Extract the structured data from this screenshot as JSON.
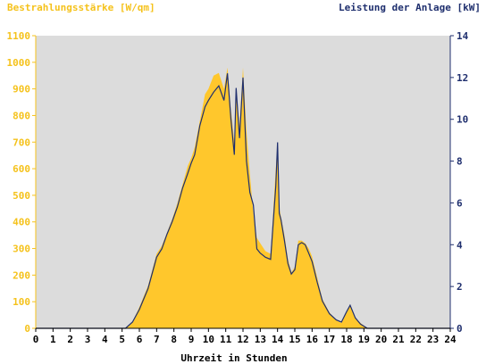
{
  "chart_data": {
    "type": "area",
    "left_axis_title": "Bestrahlungsstärke [W/qm]",
    "right_axis_title": "Leistung der Anlage [kW]",
    "xlabel": "Uhrzeit in Stunden",
    "xlim": [
      0,
      24
    ],
    "ylim_left": [
      0,
      1100
    ],
    "ylim_right": [
      0,
      14
    ],
    "x_ticks": [
      "0",
      "1",
      "2",
      "3",
      "4",
      "5",
      "6",
      "7",
      "8",
      "9",
      "10",
      "11",
      "12",
      "13",
      "14",
      "15",
      "16",
      "17",
      "18",
      "19",
      "20",
      "21",
      "22",
      "23",
      "24"
    ],
    "y_left_ticks": [
      "0",
      "100",
      "200",
      "300",
      "400",
      "500",
      "600",
      "700",
      "800",
      "900",
      "1000",
      "1100"
    ],
    "y_right_ticks": [
      "0",
      "2",
      "4",
      "6",
      "8",
      "10",
      "12",
      "14"
    ],
    "grid": false,
    "colors": {
      "irradiance_fill": "#ffc72c",
      "power_line": "#1f2f6e",
      "plot_bg": "#dcdcdc",
      "left_axis": "#f5c21b",
      "right_axis": "#1f2f6e"
    },
    "series": [
      {
        "axis": "left",
        "style": "area",
        "x": [
          0,
          5.2,
          5.6,
          6.0,
          6.5,
          7.0,
          7.3,
          7.6,
          7.9,
          8.2,
          8.5,
          8.8,
          9.0,
          9.2,
          9.5,
          9.8,
          10.0,
          10.3,
          10.6,
          10.9,
          11.1,
          11.3,
          11.5,
          11.6,
          11.8,
          12.0,
          12.2,
          12.4,
          12.6,
          12.8,
          13.0,
          13.3,
          13.6,
          13.9,
          14.0,
          14.1,
          14.2,
          14.4,
          14.6,
          14.8,
          15.0,
          15.2,
          15.4,
          15.6,
          15.8,
          16.0,
          16.3,
          16.6,
          17.0,
          17.4,
          17.7,
          18.0,
          18.2,
          18.5,
          18.8,
          19.2,
          24
        ],
        "values": [
          0,
          0,
          25,
          80,
          160,
          280,
          310,
          360,
          410,
          470,
          540,
          610,
          640,
          680,
          780,
          880,
          900,
          950,
          960,
          900,
          980,
          820,
          700,
          900,
          760,
          980,
          740,
          580,
          430,
          340,
          320,
          290,
          280,
          600,
          700,
          450,
          420,
          350,
          260,
          210,
          230,
          330,
          330,
          320,
          300,
          270,
          190,
          110,
          60,
          30,
          20,
          60,
          90,
          40,
          20,
          0,
          0
        ]
      },
      {
        "axis": "right",
        "style": "line",
        "x": [
          0,
          5.2,
          5.6,
          6.0,
          6.5,
          7.0,
          7.3,
          7.6,
          7.9,
          8.2,
          8.5,
          8.8,
          9.0,
          9.2,
          9.5,
          9.8,
          10.0,
          10.3,
          10.6,
          10.9,
          11.1,
          11.3,
          11.5,
          11.6,
          11.8,
          12.0,
          12.2,
          12.4,
          12.6,
          12.8,
          13.0,
          13.3,
          13.6,
          13.9,
          14.0,
          14.1,
          14.2,
          14.4,
          14.6,
          14.8,
          15.0,
          15.2,
          15.4,
          15.6,
          15.8,
          16.0,
          16.3,
          16.6,
          17.0,
          17.4,
          17.7,
          18.0,
          18.2,
          18.5,
          18.8,
          19.2,
          24
        ],
        "values": [
          0,
          0,
          0.3,
          0.9,
          1.9,
          3.4,
          3.8,
          4.5,
          5.1,
          5.8,
          6.7,
          7.4,
          7.9,
          8.3,
          9.7,
          10.6,
          10.9,
          11.3,
          11.6,
          10.9,
          12.2,
          10.0,
          8.3,
          11.5,
          9.1,
          12.0,
          8.0,
          6.5,
          5.9,
          3.8,
          3.6,
          3.4,
          3.3,
          6.8,
          8.9,
          5.5,
          5.2,
          4.2,
          3.1,
          2.6,
          2.8,
          4.0,
          4.1,
          4.0,
          3.6,
          3.2,
          2.2,
          1.3,
          0.7,
          0.4,
          0.3,
          0.8,
          1.1,
          0.5,
          0.2,
          0,
          0
        ]
      }
    ]
  }
}
